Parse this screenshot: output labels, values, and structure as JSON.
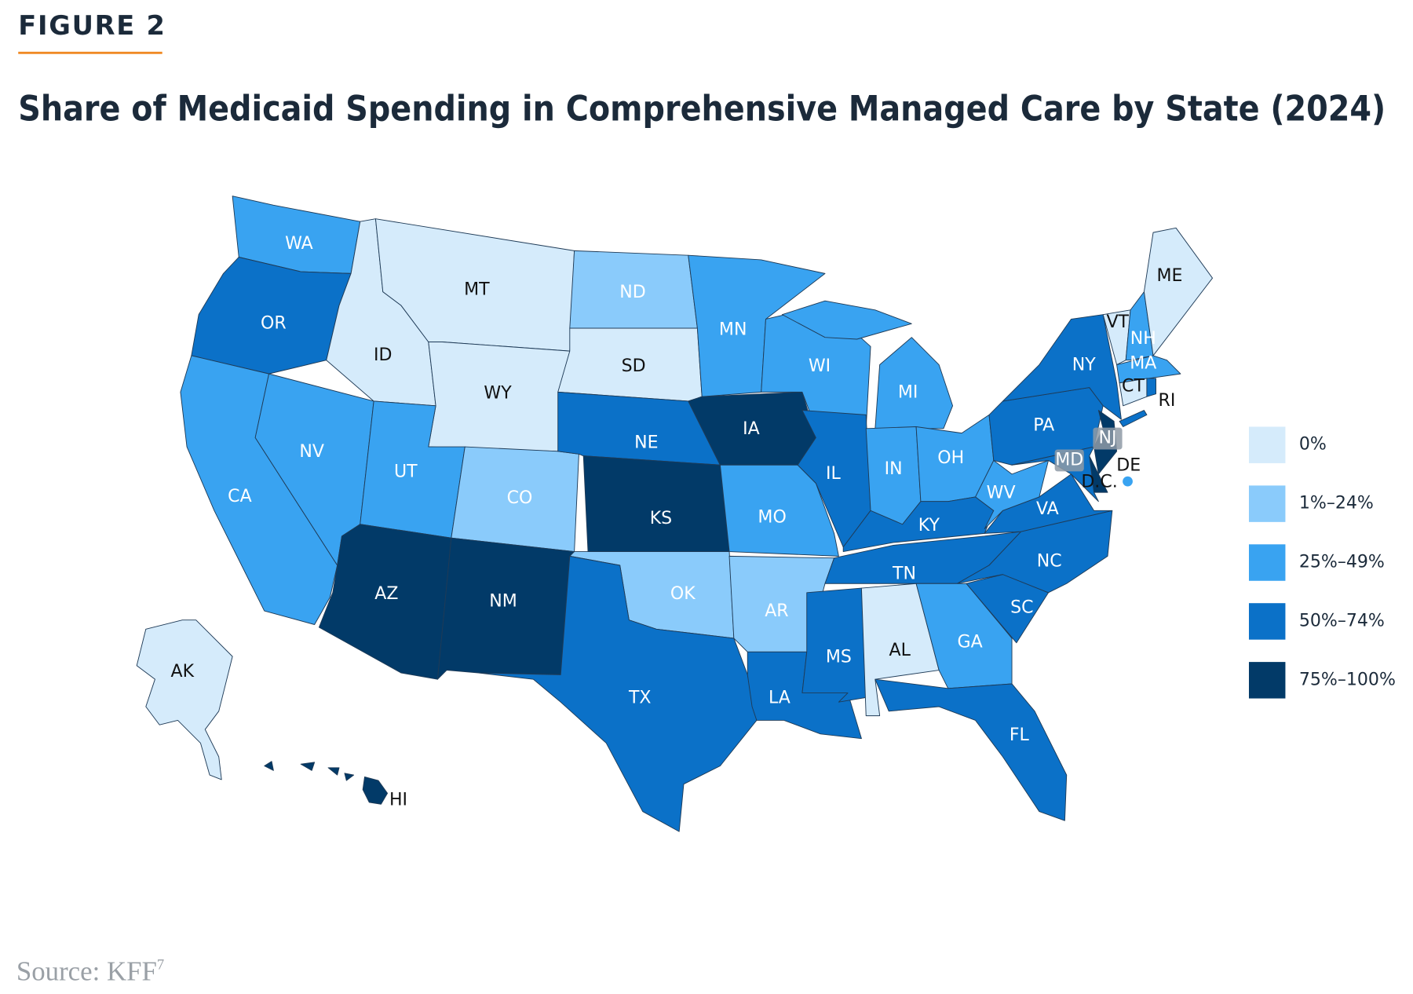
{
  "header": {
    "figure_label": "FIGURE 2",
    "title": "Share of Medicaid Spending in Comprehensive Managed Care by State (2024)"
  },
  "legend": {
    "categories": [
      {
        "label": "0%",
        "color": "#d5ebfb"
      },
      {
        "label": "1%–24%",
        "color": "#8acbfb"
      },
      {
        "label": "25%–49%",
        "color": "#39a3f1"
      },
      {
        "label": "50%–74%",
        "color": "#0b71c8"
      },
      {
        "label": "75%–100%",
        "color": "#023a68"
      }
    ]
  },
  "states": [
    {
      "label": "WA",
      "category": 2
    },
    {
      "label": "OR",
      "category": 3
    },
    {
      "label": "CA",
      "category": 2
    },
    {
      "label": "NV",
      "category": 2
    },
    {
      "label": "ID",
      "category": 0
    },
    {
      "label": "MT",
      "category": 0
    },
    {
      "label": "WY",
      "category": 0
    },
    {
      "label": "UT",
      "category": 2
    },
    {
      "label": "CO",
      "category": 1
    },
    {
      "label": "AZ",
      "category": 4
    },
    {
      "label": "NM",
      "category": 4
    },
    {
      "label": "ND",
      "category": 1
    },
    {
      "label": "SD",
      "category": 0
    },
    {
      "label": "NE",
      "category": 3
    },
    {
      "label": "KS",
      "category": 4
    },
    {
      "label": "OK",
      "category": 1
    },
    {
      "label": "TX",
      "category": 3
    },
    {
      "label": "MN",
      "category": 2
    },
    {
      "label": "IA",
      "category": 4
    },
    {
      "label": "MO",
      "category": 2
    },
    {
      "label": "AR",
      "category": 1
    },
    {
      "label": "LA",
      "category": 3
    },
    {
      "label": "WI",
      "category": 2
    },
    {
      "label": "IL",
      "category": 3
    },
    {
      "label": "MI",
      "category": 2
    },
    {
      "label": "IN",
      "category": 2
    },
    {
      "label": "OH",
      "category": 2
    },
    {
      "label": "KY",
      "category": 3
    },
    {
      "label": "TN",
      "category": 3
    },
    {
      "label": "MS",
      "category": 3
    },
    {
      "label": "AL",
      "category": 0
    },
    {
      "label": "GA",
      "category": 2
    },
    {
      "label": "FL",
      "category": 3
    },
    {
      "label": "SC",
      "category": 3
    },
    {
      "label": "NC",
      "category": 3
    },
    {
      "label": "VA",
      "category": 3
    },
    {
      "label": "WV",
      "category": 2
    },
    {
      "label": "PA",
      "category": 3
    },
    {
      "label": "NY",
      "category": 3
    },
    {
      "label": "NJ",
      "category": 4
    },
    {
      "label": "DE",
      "category": 4
    },
    {
      "label": "MD",
      "category": 3
    },
    {
      "label": "D.C.",
      "category": 2
    },
    {
      "label": "VT",
      "category": 0
    },
    {
      "label": "NH",
      "category": 2
    },
    {
      "label": "ME",
      "category": 0
    },
    {
      "label": "MA",
      "category": 2
    },
    {
      "label": "CT",
      "category": 0
    },
    {
      "label": "RI",
      "category": 3
    },
    {
      "label": "AK",
      "category": 0
    },
    {
      "label": "HI",
      "category": 4
    }
  ],
  "source": {
    "text": "Source: KFF",
    "ref": "7"
  }
}
